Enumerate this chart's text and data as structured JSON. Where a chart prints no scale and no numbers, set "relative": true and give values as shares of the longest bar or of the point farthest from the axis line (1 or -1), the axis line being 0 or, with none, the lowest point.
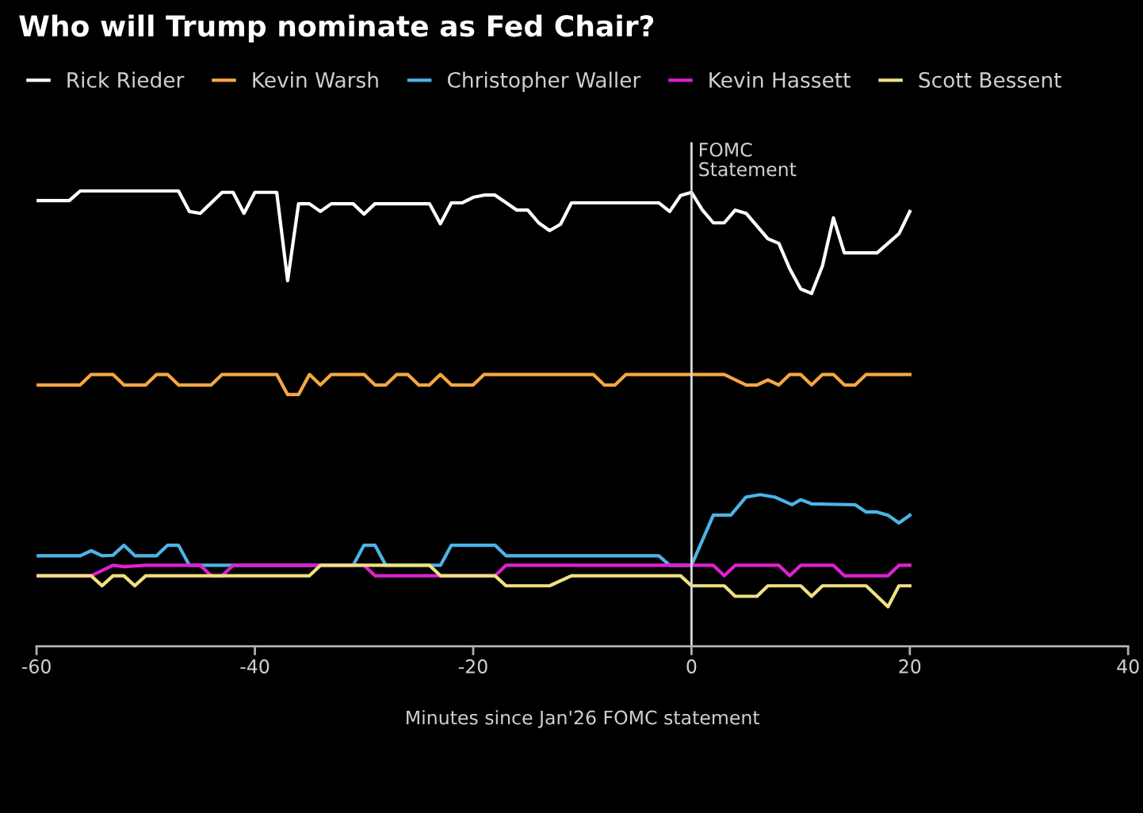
{
  "chart_data": {
    "type": "line",
    "title": "Who will Trump nominate as Fed Chair?",
    "xlabel": "Minutes since Jan'26 FOMC statement",
    "relative": true,
    "xlim": [
      -60,
      40
    ],
    "xticks": [
      -60,
      -40,
      -20,
      0,
      20,
      40
    ],
    "legend": "top",
    "line_style": "solid",
    "marker": "none",
    "ref_lines": [
      {
        "axis": "x",
        "value": 0,
        "label": "FOMC\nStatement",
        "color": "#d9d9d9"
      }
    ],
    "series": [
      {
        "name": "Rick Rieder",
        "color": "#ffffff",
        "x": [
          -60,
          -57,
          -56,
          -47,
          -46,
          -45,
          -43,
          -42,
          -41,
          -40,
          -38,
          -37,
          -36,
          -35,
          -34,
          -33,
          -31,
          -30,
          -29,
          -24,
          -23,
          -22,
          -21,
          -20,
          -19,
          -18,
          -16,
          -15,
          -14,
          -13,
          -12,
          -11,
          -3,
          -2,
          -1,
          0,
          1,
          2,
          3,
          4,
          5,
          7,
          8,
          9,
          10,
          11,
          12,
          13,
          14,
          17,
          19,
          20
        ],
        "values": [
          0.979,
          0.979,
          1.0,
          1.0,
          0.955,
          0.951,
          0.997,
          0.997,
          0.951,
          0.997,
          0.997,
          0.803,
          0.972,
          0.972,
          0.955,
          0.972,
          0.972,
          0.949,
          0.972,
          0.972,
          0.928,
          0.974,
          0.974,
          0.986,
          0.991,
          0.991,
          0.958,
          0.958,
          0.93,
          0.913,
          0.927,
          0.974,
          0.974,
          0.955,
          0.99,
          0.997,
          0.958,
          0.93,
          0.93,
          0.958,
          0.951,
          0.895,
          0.885,
          0.829,
          0.785,
          0.775,
          0.836,
          0.941,
          0.864,
          0.864,
          0.906,
          0.955
        ]
      },
      {
        "name": "Kevin Warsh",
        "color": "#f5a742",
        "x": [
          -60,
          -56,
          -55,
          -53,
          -52,
          -50,
          -49,
          -48,
          -47,
          -44,
          -43,
          -38,
          -37,
          -36,
          -35,
          -34,
          -33,
          -30,
          -29,
          -28,
          -27,
          -26,
          -25,
          -24,
          -23,
          -22,
          -20,
          -19,
          -9,
          -8,
          -7,
          -6,
          3,
          5,
          6,
          7,
          8,
          9,
          10,
          11,
          12,
          13,
          14,
          15,
          16,
          20
        ],
        "values": [
          0.574,
          0.574,
          0.597,
          0.597,
          0.574,
          0.574,
          0.597,
          0.597,
          0.574,
          0.574,
          0.597,
          0.597,
          0.553,
          0.553,
          0.597,
          0.574,
          0.597,
          0.597,
          0.574,
          0.574,
          0.597,
          0.597,
          0.574,
          0.574,
          0.597,
          0.574,
          0.574,
          0.597,
          0.597,
          0.574,
          0.574,
          0.597,
          0.597,
          0.574,
          0.574,
          0.585,
          0.574,
          0.597,
          0.597,
          0.574,
          0.597,
          0.597,
          0.574,
          0.574,
          0.597,
          0.597
        ]
      },
      {
        "name": "Christopher Waller",
        "color": "#4cb4e7",
        "x": [
          -60,
          -56,
          -55,
          -54,
          -53,
          -52,
          -51,
          -49,
          -48,
          -47,
          -46,
          -31,
          -30,
          -29,
          -28,
          -23,
          -22,
          -18,
          -17,
          -3,
          -2,
          0,
          2,
          3.6,
          5,
          6.3,
          7.6,
          9.2,
          10,
          11,
          15,
          16,
          17,
          18,
          19,
          20
        ],
        "values": [
          0.199,
          0.199,
          0.21,
          0.199,
          0.2,
          0.222,
          0.199,
          0.199,
          0.222,
          0.222,
          0.178,
          0.178,
          0.222,
          0.222,
          0.178,
          0.178,
          0.222,
          0.222,
          0.199,
          0.199,
          0.178,
          0.178,
          0.288,
          0.288,
          0.328,
          0.333,
          0.328,
          0.311,
          0.322,
          0.313,
          0.311,
          0.295,
          0.295,
          0.288,
          0.271,
          0.288
        ]
      },
      {
        "name": "Kevin Hassett",
        "color": "#e020d0",
        "x": [
          -60,
          -55,
          -53,
          -52,
          -50,
          -45,
          -44,
          -43,
          -42,
          -30,
          -29,
          -18,
          -17,
          2,
          3,
          4,
          8,
          9,
          10,
          13,
          14,
          18,
          19,
          20
        ],
        "values": [
          0.155,
          0.155,
          0.178,
          0.175,
          0.178,
          0.178,
          0.155,
          0.155,
          0.178,
          0.178,
          0.155,
          0.155,
          0.178,
          0.178,
          0.155,
          0.178,
          0.178,
          0.155,
          0.178,
          0.178,
          0.155,
          0.155,
          0.178,
          0.178
        ]
      },
      {
        "name": "Scott Bessent",
        "color": "#f0e080",
        "x": [
          -60,
          -55,
          -54,
          -53,
          -52,
          -51,
          -50,
          -35,
          -34,
          -28,
          -24,
          -23,
          -18,
          -17,
          -13,
          -11,
          -1,
          0,
          3,
          4,
          6,
          7,
          10,
          11,
          12,
          16,
          18,
          19,
          20
        ],
        "values": [
          0.155,
          0.155,
          0.133,
          0.155,
          0.155,
          0.133,
          0.155,
          0.155,
          0.178,
          0.178,
          0.178,
          0.155,
          0.155,
          0.133,
          0.133,
          0.155,
          0.155,
          0.133,
          0.133,
          0.11,
          0.11,
          0.133,
          0.133,
          0.11,
          0.133,
          0.133,
          0.087,
          0.133,
          0.133
        ]
      }
    ]
  }
}
